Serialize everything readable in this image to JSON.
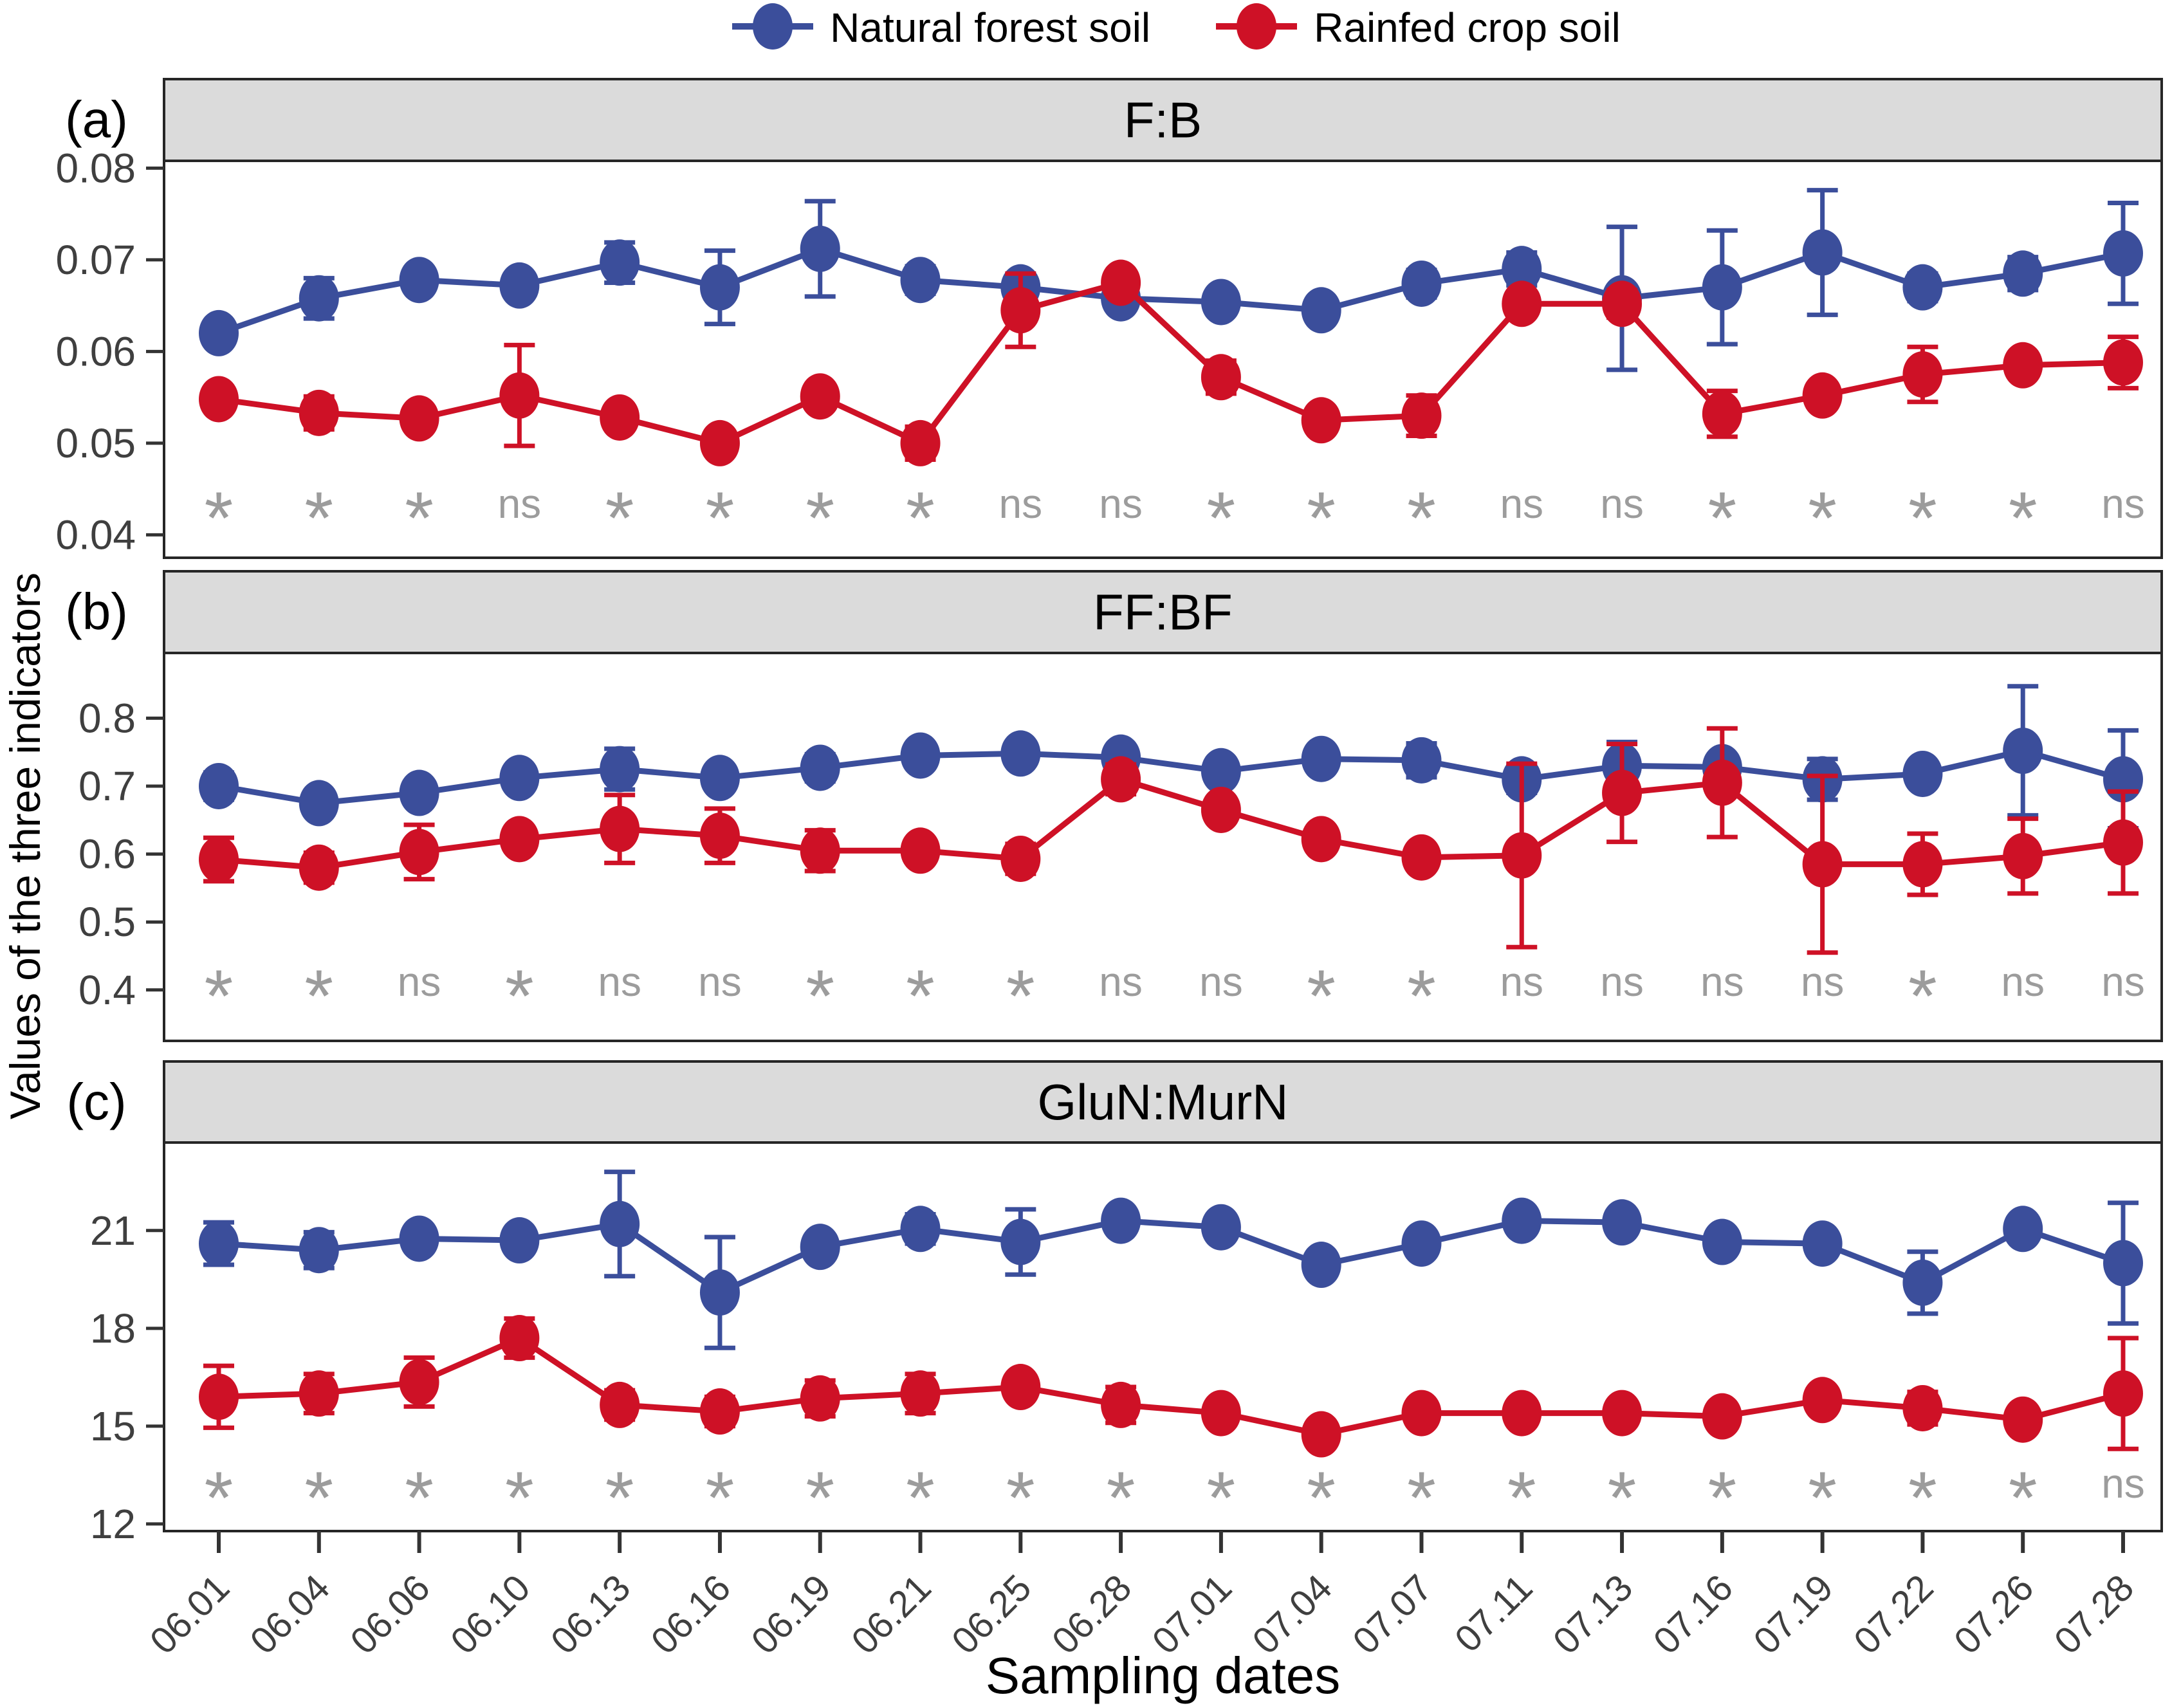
{
  "colors": {
    "forest": "#3B4E9B",
    "crop": "#CE1126",
    "strip_bg": "#DBDBDB",
    "panel_border": "#262626",
    "tick_text": "#3F3F3F",
    "sig_text": "#9C9C9C"
  },
  "legend": {
    "items": [
      {
        "key": "forest",
        "label": "Natural forest soil"
      },
      {
        "key": "crop",
        "label": "Rainfed crop soil"
      }
    ]
  },
  "axes": {
    "x_title": "Sampling dates",
    "y_title": "Values of the three indicators"
  },
  "chart_data": [
    {
      "type": "line",
      "panel_tag": "(a)",
      "title": "F:B",
      "categories": [
        "06.01",
        "06.04",
        "06.06",
        "06.10",
        "06.13",
        "06.16",
        "06.19",
        "06.21",
        "06.25",
        "06.28",
        "07.01",
        "07.04",
        "07.07",
        "07.11",
        "07.13",
        "07.16",
        "07.19",
        "07.22",
        "07.26",
        "07.28"
      ],
      "ylim": [
        0.0375,
        0.0808
      ],
      "yticks": [
        {
          "value": 0.04,
          "label": "0.04"
        },
        {
          "value": 0.05,
          "label": "0.05"
        },
        {
          "value": 0.06,
          "label": "0.06"
        },
        {
          "value": 0.07,
          "label": "0.07"
        },
        {
          "value": 0.08,
          "label": "0.08"
        }
      ],
      "series": [
        {
          "name": "Natural forest soil",
          "color_key": "forest",
          "values": [
            0.062,
            0.0658,
            0.0678,
            0.0672,
            0.0697,
            0.067,
            0.0712,
            0.0678,
            0.067,
            0.0658,
            0.0654,
            0.0645,
            0.0674,
            0.069,
            0.0658,
            0.067,
            0.0708,
            0.067,
            0.0685,
            0.0707
          ],
          "errors": [
            0.0008,
            0.0022,
            0.0012,
            0.0008,
            0.0022,
            0.004,
            0.0052,
            0.0015,
            0.0012,
            0.0012,
            0.0012,
            0.0012,
            0.0015,
            0.0018,
            0.0078,
            0.0062,
            0.0068,
            0.0015,
            0.0018,
            0.0055
          ]
        },
        {
          "name": "Rainfed crop soil",
          "color_key": "crop",
          "values": [
            0.0548,
            0.0533,
            0.0527,
            0.0552,
            0.0528,
            0.05,
            0.0551,
            0.05,
            0.0645,
            0.0675,
            0.0572,
            0.0525,
            0.053,
            0.0652,
            0.0652,
            0.0532,
            0.0552,
            0.0575,
            0.0585,
            0.0588
          ],
          "errors": [
            0.0008,
            0.0018,
            0.0012,
            0.0055,
            0.0012,
            0.0012,
            0.0008,
            0.0018,
            0.004,
            0.0008,
            0.0018,
            0.0008,
            0.0022,
            0.0008,
            0.0015,
            0.0025,
            0.0008,
            0.003,
            0.0012,
            0.0028
          ]
        }
      ],
      "significance": [
        "*",
        "*",
        "*",
        "ns",
        "*",
        "*",
        "*",
        "*",
        "ns",
        "ns",
        "*",
        "*",
        "*",
        "ns",
        "ns",
        "*",
        "*",
        "*",
        "*",
        "ns"
      ]
    },
    {
      "type": "line",
      "panel_tag": "(b)",
      "title": "FF:BF",
      "categories": [
        "06.01",
        "06.04",
        "06.06",
        "06.10",
        "06.13",
        "06.16",
        "06.19",
        "06.21",
        "06.25",
        "06.28",
        "07.01",
        "07.04",
        "07.07",
        "07.11",
        "07.13",
        "07.16",
        "07.19",
        "07.22",
        "07.26",
        "07.28"
      ],
      "ylim": [
        0.325,
        0.896
      ],
      "yticks": [
        {
          "value": 0.4,
          "label": "0.4"
        },
        {
          "value": 0.5,
          "label": "0.5"
        },
        {
          "value": 0.6,
          "label": "0.6"
        },
        {
          "value": 0.7,
          "label": "0.7"
        },
        {
          "value": 0.8,
          "label": "0.8"
        }
      ],
      "series": [
        {
          "name": "Natural forest soil",
          "color_key": "forest",
          "values": [
            0.7,
            0.675,
            0.69,
            0.712,
            0.725,
            0.712,
            0.727,
            0.745,
            0.748,
            0.742,
            0.722,
            0.74,
            0.738,
            0.71,
            0.73,
            0.728,
            0.71,
            0.718,
            0.752,
            0.71
          ],
          "errors": [
            0.02,
            0.012,
            0.01,
            0.01,
            0.03,
            0.018,
            0.02,
            0.012,
            0.01,
            0.01,
            0.018,
            0.01,
            0.025,
            0.02,
            0.035,
            0.012,
            0.03,
            0.01,
            0.095,
            0.072
          ]
        },
        {
          "name": "Rainfed crop soil",
          "color_key": "crop",
          "values": [
            0.592,
            0.58,
            0.603,
            0.622,
            0.637,
            0.627,
            0.605,
            0.605,
            0.593,
            0.71,
            0.665,
            0.622,
            0.595,
            0.598,
            0.69,
            0.705,
            0.585,
            0.585,
            0.597,
            0.617
          ],
          "errors": [
            0.032,
            0.022,
            0.04,
            0.012,
            0.05,
            0.04,
            0.03,
            0.012,
            0.022,
            0.022,
            0.018,
            0.012,
            0.012,
            0.135,
            0.072,
            0.08,
            0.13,
            0.045,
            0.055,
            0.075
          ]
        }
      ],
      "significance": [
        "*",
        "*",
        "ns",
        "*",
        "ns",
        "ns",
        "*",
        "*",
        "*",
        "ns",
        "ns",
        "*",
        "*",
        "ns",
        "ns",
        "ns",
        "ns",
        "*",
        "ns",
        "ns"
      ]
    },
    {
      "type": "line",
      "panel_tag": "(c)",
      "title": "GluN:MurN",
      "categories": [
        "06.01",
        "06.04",
        "06.06",
        "06.10",
        "06.13",
        "06.16",
        "06.19",
        "06.21",
        "06.25",
        "06.28",
        "07.01",
        "07.04",
        "07.07",
        "07.11",
        "07.13",
        "07.16",
        "07.19",
        "07.22",
        "07.26",
        "07.28"
      ],
      "ylim": [
        11.78,
        23.7
      ],
      "yticks": [
        {
          "value": 12,
          "label": "12"
        },
        {
          "value": 15,
          "label": "15"
        },
        {
          "value": 18,
          "label": "18"
        },
        {
          "value": 21,
          "label": "21"
        }
      ],
      "series": [
        {
          "name": "Natural forest soil",
          "color_key": "forest",
          "values": [
            20.6,
            20.4,
            20.75,
            20.7,
            21.2,
            19.1,
            20.5,
            21.05,
            20.65,
            21.3,
            21.1,
            19.95,
            20.6,
            21.3,
            21.25,
            20.65,
            20.6,
            19.4,
            21.05,
            20.0
          ],
          "errors": [
            0.65,
            0.55,
            0.2,
            0.2,
            1.6,
            1.7,
            0.35,
            0.45,
            1.0,
            0.2,
            0.2,
            0.2,
            0.2,
            0.2,
            0.2,
            0.2,
            0.2,
            0.95,
            0.2,
            1.85
          ]
        },
        {
          "name": "Rainfed crop soil",
          "color_key": "crop",
          "values": [
            15.9,
            16.0,
            16.35,
            17.7,
            15.65,
            15.45,
            15.85,
            16.0,
            16.2,
            15.65,
            15.4,
            14.75,
            15.4,
            15.4,
            15.4,
            15.3,
            15.8,
            15.55,
            15.2,
            16.0
          ],
          "errors": [
            0.95,
            0.6,
            0.75,
            0.6,
            0.45,
            0.45,
            0.55,
            0.6,
            0.2,
            0.55,
            0.2,
            0.2,
            0.2,
            0.2,
            0.2,
            0.2,
            0.2,
            0.5,
            0.2,
            1.7
          ]
        }
      ],
      "significance": [
        "*",
        "*",
        "*",
        "*",
        "*",
        "*",
        "*",
        "*",
        "*",
        "*",
        "*",
        "*",
        "*",
        "*",
        "*",
        "*",
        "*",
        "*",
        "*",
        "ns"
      ]
    }
  ]
}
